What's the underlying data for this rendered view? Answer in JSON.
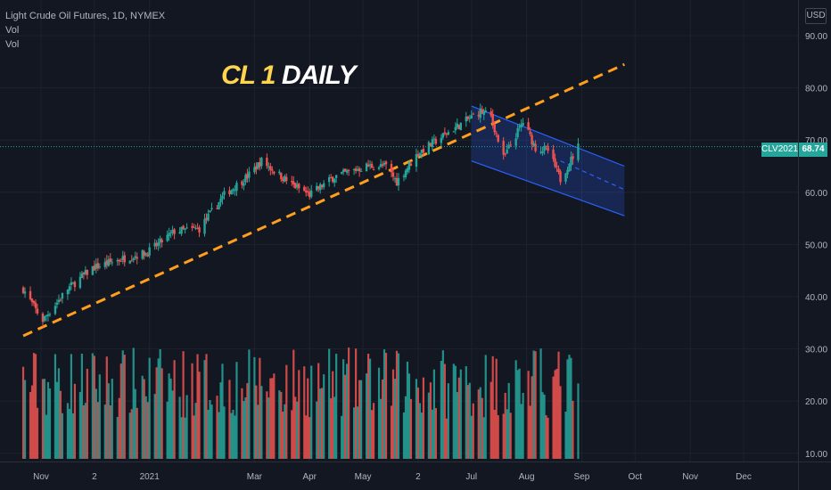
{
  "legend": {
    "symbol": "Light Crude Oil Futures, 1D, NYMEX",
    "study1": "Vol",
    "study2": "Vol"
  },
  "currency": "USD",
  "overlay_title": {
    "part1": "CL 1",
    "part2": "DAILY"
  },
  "last_price": {
    "ticker": "CLV2021",
    "value": "68.74"
  },
  "colors": {
    "background": "#131722",
    "up": "#26a69a",
    "down": "#ef5350",
    "trendline": "#ff9f1c",
    "channel_line": "#2962ff",
    "channel_fill": "#2962ff",
    "grid": "#1e222d",
    "axis_text": "#b2b5be"
  },
  "chart_data": {
    "type": "candlestick",
    "y_axis_ticks": [
      "90.00",
      "80.00",
      "70.00",
      "60.00",
      "50.00",
      "40.00",
      "30.00",
      "20.00",
      "10.00"
    ],
    "x_axis_ticks": [
      "Nov",
      "2",
      "2021",
      "Mar",
      "Apr",
      "May",
      "2",
      "Jul",
      "Aug",
      "Sep",
      "Oct",
      "Nov",
      "Dec"
    ],
    "price_range": [
      9,
      95
    ],
    "price_path": [
      [
        "2020-10-22",
        41.5
      ],
      [
        "2020-10-29",
        37.5
      ],
      [
        "2020-11-02",
        35.5
      ],
      [
        "2020-11-16",
        41.5
      ],
      [
        "2020-11-30",
        45.5
      ],
      [
        "2020-12-14",
        47.0
      ],
      [
        "2020-12-31",
        48.5
      ],
      [
        "2021-01-15",
        52.5
      ],
      [
        "2021-01-29",
        53.0
      ],
      [
        "2021-02-12",
        59.5
      ],
      [
        "2021-02-25",
        63.0
      ],
      [
        "2021-03-05",
        66.0
      ],
      [
        "2021-03-22",
        61.5
      ],
      [
        "2021-04-01",
        59.5
      ],
      [
        "2021-04-15",
        63.0
      ],
      [
        "2021-05-03",
        65.0
      ],
      [
        "2021-05-14",
        65.0
      ],
      [
        "2021-05-20",
        62.0
      ],
      [
        "2021-06-01",
        67.5
      ],
      [
        "2021-06-18",
        71.5
      ],
      [
        "2021-07-06",
        75.5
      ],
      [
        "2021-07-12",
        74.5
      ],
      [
        "2021-07-19",
        66.5
      ],
      [
        "2021-07-30",
        73.5
      ],
      [
        "2021-08-06",
        68.5
      ],
      [
        "2021-08-13",
        68.0
      ],
      [
        "2021-08-20",
        62.5
      ],
      [
        "2021-08-30",
        68.74
      ]
    ],
    "volume_axis_note": "volume bars plotted in lower pane",
    "drawings": {
      "trendline": {
        "from": [
          "2020-10-22",
          32.5
        ],
        "to": [
          "2021-09-25",
          84.5
        ]
      },
      "channel": {
        "upper_from": [
          "2021-07-01",
          76.5
        ],
        "upper_to": [
          "2021-09-25",
          65.0
        ],
        "lower_from": [
          "2021-07-01",
          66.0
        ],
        "lower_to": [
          "2021-09-25",
          55.5
        ],
        "mid_from": [
          "2021-08-20",
          66.0
        ],
        "mid_to": [
          "2021-09-25",
          60.5
        ]
      }
    },
    "last_value": 68.74,
    "grid": true
  }
}
